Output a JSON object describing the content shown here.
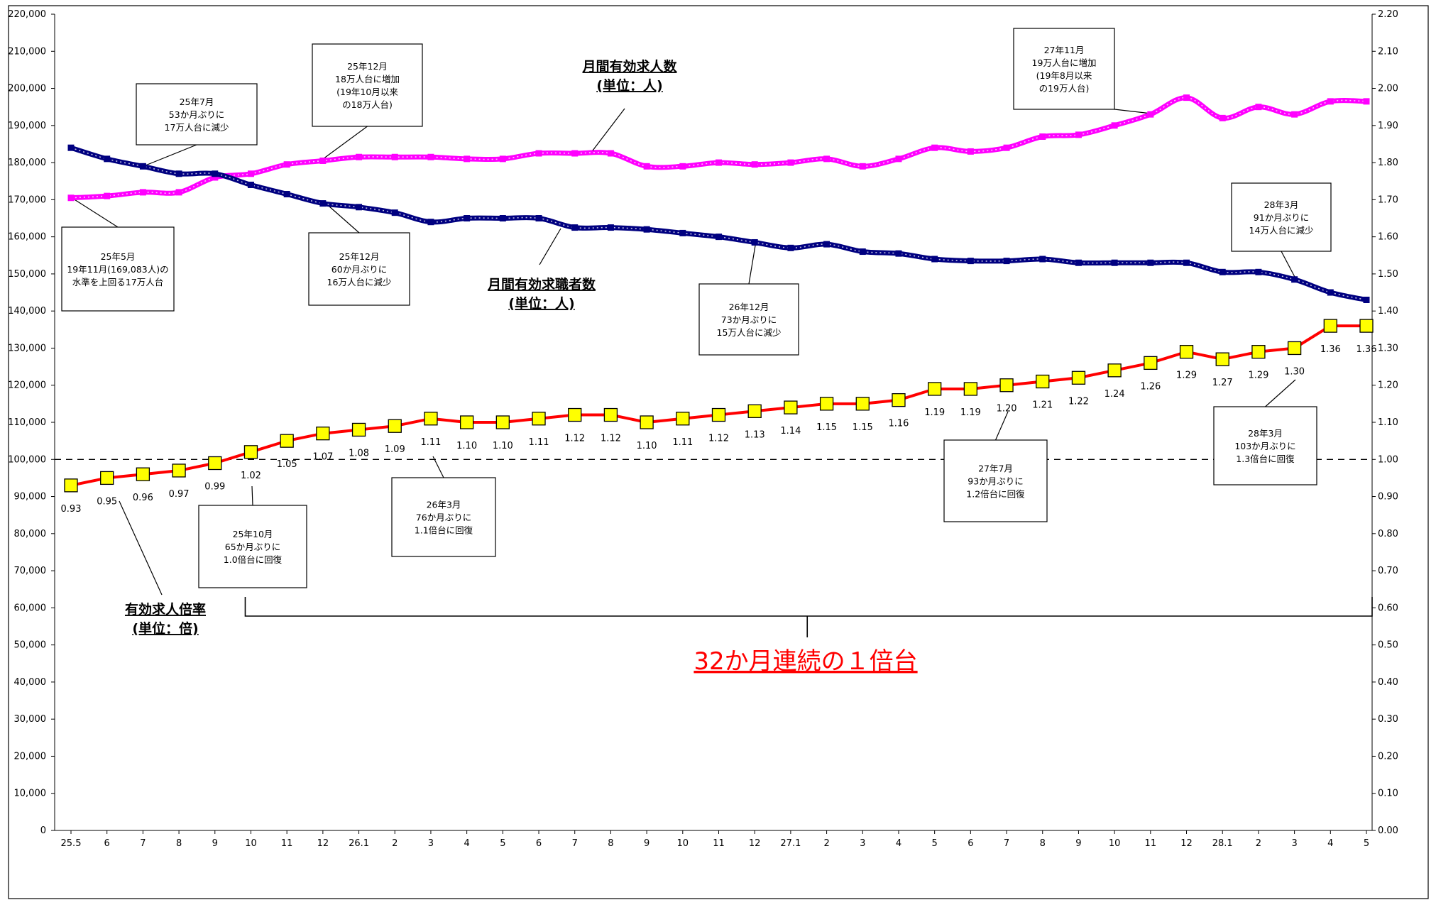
{
  "chart_data": {
    "type": "line",
    "categories": [
      "25.5",
      "6",
      "7",
      "8",
      "9",
      "10",
      "11",
      "12",
      "26.1",
      "2",
      "3",
      "4",
      "5",
      "6",
      "7",
      "8",
      "9",
      "10",
      "11",
      "12",
      "27.1",
      "2",
      "3",
      "4",
      "5",
      "6",
      "7",
      "8",
      "9",
      "10",
      "11",
      "12",
      "28.1",
      "2",
      "3",
      "4",
      "5"
    ],
    "left_axis": {
      "min": 0,
      "max": 220000,
      "step": 10000,
      "tick_labels": [
        "0",
        "10,000",
        "20,000",
        "30,000",
        "40,000",
        "50,000",
        "60,000",
        "70,000",
        "80,000",
        "90,000",
        "100,000",
        "110,000",
        "120,000",
        "130,000",
        "140,000",
        "150,000",
        "160,000",
        "170,000",
        "180,000",
        "190,000",
        "200,000",
        "210,000",
        "220,000"
      ]
    },
    "right_axis": {
      "min": 0,
      "max": 2.2,
      "step": 0.1,
      "tick_labels": [
        "0.00",
        "0.10",
        "0.20",
        "0.30",
        "0.40",
        "0.50",
        "0.60",
        "0.70",
        "0.80",
        "0.90",
        "1.00",
        "1.10",
        "1.20",
        "1.30",
        "1.40",
        "1.50",
        "1.60",
        "1.70",
        "1.80",
        "1.90",
        "2.00",
        "2.10",
        "2.20"
      ]
    },
    "reference_line": 1.0,
    "series": [
      {
        "name": "月間有効求人数",
        "subname": "(単位：人)",
        "axis": "left",
        "color": "#ff00ff",
        "values": [
          170500,
          171000,
          172000,
          172000,
          176000,
          177000,
          179500,
          180500,
          181500,
          181500,
          181500,
          181000,
          181000,
          182500,
          182500,
          182500,
          179000,
          179000,
          180000,
          179500,
          180000,
          181000,
          179000,
          181000,
          184000,
          183000,
          184000,
          187000,
          187500,
          190000,
          193000,
          197500,
          192000,
          195000,
          193000,
          196500,
          196500
        ]
      },
      {
        "name": "月間有効求職者数",
        "subname": "(単位：人)",
        "axis": "left",
        "color": "#000080",
        "values": [
          184000,
          181000,
          179000,
          177000,
          177000,
          174000,
          171500,
          169000,
          168000,
          166500,
          164000,
          165000,
          165000,
          165000,
          162500,
          162500,
          162000,
          161000,
          160000,
          158500,
          157000,
          158000,
          156000,
          155500,
          154000,
          153500,
          153500,
          154000,
          153000,
          153000,
          153000,
          153000,
          150500,
          150500,
          148500,
          145000,
          143000
        ]
      },
      {
        "name": "有効求人倍率",
        "subname": "(単位：倍)",
        "axis": "right",
        "color": "#ff0000",
        "marker_color": "#ffff00",
        "values": [
          0.93,
          0.95,
          0.96,
          0.97,
          0.99,
          1.02,
          1.05,
          1.07,
          1.08,
          1.09,
          1.11,
          1.1,
          1.1,
          1.11,
          1.12,
          1.12,
          1.1,
          1.11,
          1.12,
          1.13,
          1.14,
          1.15,
          1.15,
          1.16,
          1.19,
          1.19,
          1.2,
          1.21,
          1.22,
          1.24,
          1.26,
          1.29,
          1.27,
          1.29,
          1.3,
          1.36,
          1.36
        ],
        "data_labels": [
          "0.93",
          "0.95",
          "0.96",
          "0.97",
          "0.99",
          "1.02",
          "1.05",
          "1.07",
          "1.08",
          "1.09",
          "1.11",
          "1.10",
          "1.10",
          "1.11",
          "1.12",
          "1.12",
          "1.10",
          "1.11",
          "1.12",
          "1.13",
          "1.14",
          "1.15",
          "1.15",
          "1.16",
          "1.19",
          "1.19",
          "1.20",
          "1.21",
          "1.22",
          "1.24",
          "1.26",
          "1.29",
          "1.27",
          "1.29",
          "1.30",
          "1.36",
          "1.36"
        ]
      }
    ],
    "series_titles": [
      {
        "lines": [
          "月間有効求人数",
          "(単位：人)"
        ]
      },
      {
        "lines": [
          "月間有効求職者数",
          "(単位：人)"
        ]
      },
      {
        "lines": [
          "有効求人倍率",
          "(単位：倍)"
        ]
      }
    ],
    "annotations": [
      {
        "lines": [
          "25年5月",
          "19年11月(169,083人)の",
          "水準を上回る17万人台"
        ]
      },
      {
        "lines": [
          "25年7月",
          "53か月ぶりに",
          "17万人台に減少"
        ]
      },
      {
        "lines": [
          "25年12月",
          "18万人台に増加",
          "(19年10月以来",
          "の18万人台)"
        ]
      },
      {
        "lines": [
          "25年12月",
          "60か月ぶりに",
          "16万人台に減少"
        ]
      },
      {
        "lines": [
          "26年12月",
          "73か月ぶりに",
          "15万人台に減少"
        ]
      },
      {
        "lines": [
          "27年11月",
          "19万人台に増加",
          "(19年8月以来",
          "の19万人台)"
        ]
      },
      {
        "lines": [
          "28年3月",
          "91か月ぶりに",
          "14万人台に減少"
        ]
      },
      {
        "lines": [
          "25年10月",
          "65か月ぶりに",
          "1.0倍台に回復"
        ]
      },
      {
        "lines": [
          "26年3月",
          "76か月ぶりに",
          "1.1倍台に回復"
        ]
      },
      {
        "lines": [
          "27年7月",
          "93か月ぶりに",
          "1.2倍台に回復"
        ]
      },
      {
        "lines": [
          "28年3月",
          "103か月ぶりに",
          "1.3倍台に回復"
        ]
      }
    ],
    "bracket_label": "32か月連続の１倍台"
  }
}
